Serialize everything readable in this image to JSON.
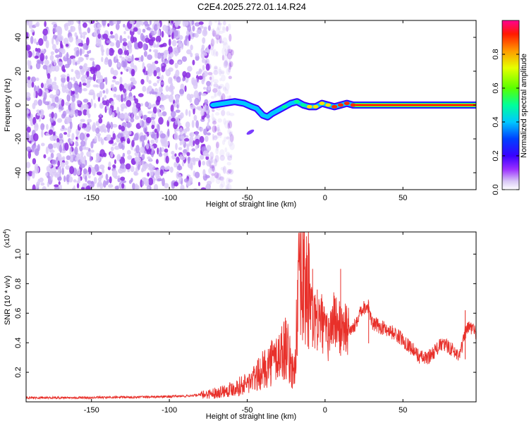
{
  "title": "C2E4.2025.272.01.14.R24",
  "chart_data": [
    {
      "type": "heatmap",
      "title": "C2E4.2025.272.01.14.R24",
      "xlabel": "Height of straight line (km)",
      "ylabel": "Frequency (Hz)",
      "xlim": [
        -192,
        97
      ],
      "ylim": [
        -50,
        50
      ],
      "xticks": [
        -150,
        -100,
        -50,
        0,
        50
      ],
      "yticks": [
        -40,
        -20,
        0,
        20,
        40
      ],
      "colorbar": {
        "label": "Normalized spectral amplitude",
        "range": [
          0,
          1
        ],
        "ticks": [
          0.0,
          0.2,
          0.4,
          0.6,
          0.8
        ],
        "tick_labels": [
          "0.0",
          "0.2",
          "0.4",
          "0.6",
          "0.8"
        ],
        "colors": [
          "#ffffff",
          "#d9c8f7",
          "#8a2be2",
          "#0000ff",
          "#00bfff",
          "#00ff7f",
          "#adff2f",
          "#ffd700",
          "#ff8c00",
          "#ff0000",
          "#ff00a0"
        ]
      },
      "noise_region_x": [
        -192,
        -65
      ],
      "signal_trace": {
        "x": [
          -72,
          -65,
          -58,
          -52,
          -47,
          -44,
          -40,
          -37,
          -34,
          -30,
          -26,
          -22,
          -18,
          -14,
          -10,
          -6,
          -2,
          2,
          6,
          10,
          14,
          18,
          30,
          50,
          70,
          97
        ],
        "y": [
          0,
          1,
          2,
          1,
          -1,
          -2,
          -6,
          -7,
          -5,
          -3,
          -1,
          1,
          2,
          0,
          -1,
          -1,
          1,
          0,
          -1,
          0,
          1,
          0,
          0,
          0,
          0,
          0
        ],
        "amplitude": [
          0.3,
          0.45,
          0.5,
          0.4,
          0.45,
          0.5,
          0.55,
          0.5,
          0.55,
          0.5,
          0.6,
          0.55,
          0.6,
          0.7,
          0.75,
          0.8,
          0.85,
          0.8,
          0.9,
          0.95,
          0.95,
          0.95,
          0.95,
          0.95,
          0.95,
          0.95
        ]
      }
    },
    {
      "type": "line",
      "xlabel": "Height of straight line (km)",
      "ylabel": "SNR (10 * v/v)",
      "y_multiplier": "(x10",
      "y_multiplier_exp": "4",
      "y_multiplier_close": ")",
      "xlim": [
        -192,
        97
      ],
      "ylim": [
        0,
        1.15
      ],
      "xticks": [
        -150,
        -100,
        -50,
        0,
        50
      ],
      "yticks": [
        0.2,
        0.4,
        0.6,
        0.8,
        1.0
      ],
      "series": [
        {
          "name": "SNR",
          "color": "#e8302a",
          "envelope_x": [
            -192,
            -150,
            -110,
            -90,
            -80,
            -70,
            -60,
            -50,
            -45,
            -40,
            -35,
            -30,
            -25,
            -20,
            -17,
            -14,
            -12,
            -10,
            -8,
            -6,
            -4,
            -2,
            0,
            2,
            4,
            6,
            8,
            10,
            12,
            15,
            18,
            20,
            22,
            25,
            28,
            30,
            35,
            40,
            45,
            50,
            55,
            60,
            65,
            70,
            75,
            80,
            85,
            88,
            90,
            93,
            97
          ],
          "envelope_y": [
            0.03,
            0.03,
            0.035,
            0.04,
            0.05,
            0.07,
            0.1,
            0.14,
            0.18,
            0.24,
            0.3,
            0.35,
            0.42,
            0.2,
            0.8,
            0.95,
            0.9,
            0.78,
            0.62,
            0.56,
            0.6,
            0.58,
            0.5,
            0.46,
            0.55,
            0.62,
            0.56,
            0.52,
            0.58,
            0.5,
            0.5,
            0.55,
            0.62,
            0.65,
            0.66,
            0.54,
            0.52,
            0.5,
            0.47,
            0.43,
            0.38,
            0.32,
            0.3,
            0.35,
            0.4,
            0.38,
            0.33,
            0.38,
            0.48,
            0.52,
            0.48
          ],
          "spike_x": [
            -38,
            -35,
            -30,
            -25,
            -20,
            -14,
            -12,
            -8,
            -5,
            10,
            12,
            28,
            90
          ],
          "spike_y": [
            0.28,
            0.35,
            0.42,
            0.55,
            0.2,
            1.1,
            1.12,
            0.9,
            0.76,
            0.9,
            0.6,
            0.68,
            0.62
          ]
        }
      ]
    }
  ]
}
